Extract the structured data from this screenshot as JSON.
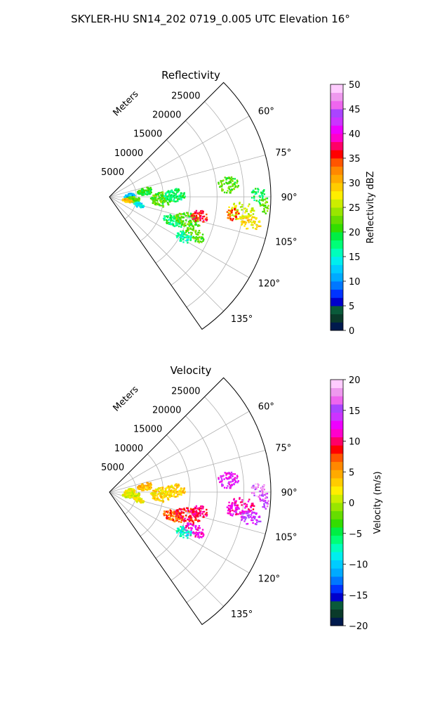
{
  "figure": {
    "title": "SKYLER-HU  SN14_202  0719_0.005 UTC Elevation 16°"
  },
  "chart_data": [
    {
      "type": "heatmap",
      "projection": "polar-sector",
      "title": "Reflectivity",
      "radial_label": "Meters",
      "range_rings": [
        5000,
        10000,
        15000,
        20000,
        25000
      ],
      "range_limit": 30000,
      "azimuth_ticks": [
        60,
        75,
        90,
        105,
        120,
        135
      ],
      "azimuth_range": [
        45,
        145
      ],
      "grid": true,
      "colorbar": {
        "label": "Reflectivity dBZ",
        "min": 0,
        "max": 50,
        "ticks": [
          0,
          5,
          10,
          15,
          20,
          25,
          30,
          35,
          40,
          45,
          50
        ],
        "colors": [
          "#001a4d",
          "#0a3a2a",
          "#0a5a3a",
          "#0000cc",
          "#0033ff",
          "#0077ff",
          "#00aaff",
          "#00ccff",
          "#00eeee",
          "#00ffbb",
          "#00ff77",
          "#00ee44",
          "#33dd00",
          "#66dd00",
          "#99e600",
          "#ccee00",
          "#ffee00",
          "#ffcc00",
          "#ffaa00",
          "#ff8800",
          "#ff5500",
          "#ff0000",
          "#ff0066",
          "#ff00cc",
          "#ee00ff",
          "#cc33ff",
          "#aa44ff",
          "#ee66ee",
          "#ee99ee",
          "#ffccff"
        ]
      },
      "echoes": [
        {
          "az": 80,
          "r": 6500,
          "ar": 1600,
          "aa": 6,
          "v": 20
        },
        {
          "az": 86,
          "r": 3600,
          "ar": 1000,
          "aa": 8,
          "v": 12
        },
        {
          "az": 95,
          "r": 4200,
          "ar": 1400,
          "aa": 7,
          "v": 22
        },
        {
          "az": 100,
          "r": 3200,
          "ar": 900,
          "aa": 6,
          "v": 30
        },
        {
          "az": 104,
          "r": 5500,
          "ar": 1000,
          "aa": 5,
          "v": 14
        },
        {
          "az": 92,
          "r": 9500,
          "ar": 2000,
          "aa": 8,
          "v": 22
        },
        {
          "az": 88,
          "r": 12000,
          "ar": 2000,
          "aa": 6,
          "v": 18
        },
        {
          "az": 110,
          "r": 12500,
          "ar": 2000,
          "aa": 5,
          "v": 18
        },
        {
          "az": 106,
          "r": 15000,
          "ar": 2500,
          "aa": 5,
          "v": 22
        },
        {
          "az": 102,
          "r": 17000,
          "ar": 1600,
          "aa": 4,
          "v": 36
        },
        {
          "az": 114,
          "r": 17000,
          "ar": 2200,
          "aa": 4,
          "v": 22
        },
        {
          "az": 118,
          "r": 15500,
          "ar": 1500,
          "aa": 4,
          "v": 16
        },
        {
          "az": 84,
          "r": 22000,
          "ar": 2000,
          "aa": 4,
          "v": 22
        },
        {
          "az": 96,
          "r": 24500,
          "ar": 2500,
          "aa": 4,
          "v": 26
        },
        {
          "az": 100,
          "r": 26500,
          "ar": 2000,
          "aa": 3,
          "v": 28
        },
        {
          "az": 89,
          "r": 27500,
          "ar": 1500,
          "aa": 3,
          "v": 18
        },
        {
          "az": 93,
          "r": 28800,
          "ar": 1000,
          "aa": 3,
          "v": 22
        },
        {
          "az": 98,
          "r": 23000,
          "ar": 1200,
          "aa": 3,
          "v": 34
        }
      ]
    },
    {
      "type": "heatmap",
      "projection": "polar-sector",
      "title": "Velocity",
      "radial_label": "Meters",
      "range_rings": [
        5000,
        10000,
        15000,
        20000,
        25000
      ],
      "range_limit": 30000,
      "azimuth_ticks": [
        60,
        75,
        90,
        105,
        120,
        135
      ],
      "azimuth_range": [
        45,
        145
      ],
      "grid": true,
      "colorbar": {
        "label": "Velocity (m/s)",
        "min": -20,
        "max": 20,
        "ticks": [
          -20,
          -15,
          -10,
          -5,
          0,
          5,
          10,
          15,
          20
        ],
        "colors": [
          "#001a4d",
          "#0a3a2a",
          "#0a5a3a",
          "#0000cc",
          "#0033ff",
          "#0077ff",
          "#00aaff",
          "#00ccff",
          "#00eeee",
          "#00ffbb",
          "#00ff77",
          "#00ee44",
          "#33dd00",
          "#66dd00",
          "#99e600",
          "#ccee00",
          "#ffee00",
          "#ffcc00",
          "#ffaa00",
          "#ff8800",
          "#ff5500",
          "#ff0000",
          "#ff0066",
          "#ff00cc",
          "#ee00ff",
          "#cc33ff",
          "#aa44ff",
          "#ee66ee",
          "#ee99ee",
          "#ffccff"
        ]
      },
      "echoes": [
        {
          "az": 80,
          "r": 6500,
          "ar": 1600,
          "aa": 6,
          "v": 4
        },
        {
          "az": 86,
          "r": 3600,
          "ar": 1000,
          "aa": 8,
          "v": 2
        },
        {
          "az": 95,
          "r": 4200,
          "ar": 1400,
          "aa": 7,
          "v": 1
        },
        {
          "az": 100,
          "r": 3200,
          "ar": 900,
          "aa": 6,
          "v": 1
        },
        {
          "az": 104,
          "r": 5500,
          "ar": 1000,
          "aa": 5,
          "v": 2
        },
        {
          "az": 92,
          "r": 9500,
          "ar": 2000,
          "aa": 8,
          "v": 3
        },
        {
          "az": 88,
          "r": 12000,
          "ar": 2000,
          "aa": 6,
          "v": 3
        },
        {
          "az": 110,
          "r": 12500,
          "ar": 2000,
          "aa": 5,
          "v": 7
        },
        {
          "az": 106,
          "r": 15000,
          "ar": 2500,
          "aa": 5,
          "v": 9
        },
        {
          "az": 102,
          "r": 17000,
          "ar": 1600,
          "aa": 4,
          "v": 10
        },
        {
          "az": 114,
          "r": 17000,
          "ar": 2200,
          "aa": 4,
          "v": 12
        },
        {
          "az": 118,
          "r": 15500,
          "ar": 1500,
          "aa": 4,
          "v": -8
        },
        {
          "az": 84,
          "r": 22000,
          "ar": 2000,
          "aa": 4,
          "v": 13
        },
        {
          "az": 96,
          "r": 24500,
          "ar": 2500,
          "aa": 4,
          "v": 11
        },
        {
          "az": 100,
          "r": 26500,
          "ar": 2000,
          "aa": 3,
          "v": 14
        },
        {
          "az": 89,
          "r": 27500,
          "ar": 1500,
          "aa": 3,
          "v": 17
        },
        {
          "az": 93,
          "r": 28800,
          "ar": 1000,
          "aa": 3,
          "v": 15
        },
        {
          "az": 98,
          "r": 23000,
          "ar": 1200,
          "aa": 3,
          "v": 12
        }
      ]
    }
  ]
}
